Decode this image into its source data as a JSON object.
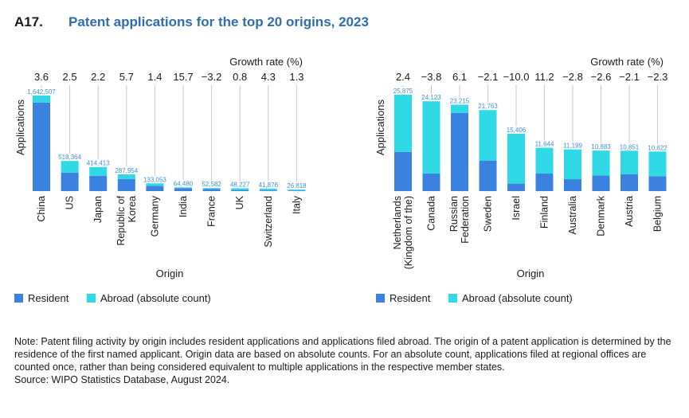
{
  "figure_id": "A17.",
  "title": "Patent applications for the top 20 origins, 2023",
  "colors": {
    "resident": "#3b82e0",
    "abroad": "#2fd9e5",
    "title": "#2f6db0",
    "totals": "#3f8fd8"
  },
  "note": "Note: Patent filing activity by origin includes resident applications and applications filed abroad. The origin of a patent application is determined by the residence of the first named applicant. Origin data are based on absolute counts. For an absolute count, applications filed at regional offices are counted once, rather than being considered equivalent to multiple applications in the respective member states.",
  "source": "Source: WIPO Statistics Database, August 2024.",
  "chart_data": [
    {
      "type": "bar",
      "stacked": true,
      "growth_title": "Growth rate (%)",
      "ylabel": "Applications",
      "xlabel": "Origin",
      "ylim": [
        0,
        1642507
      ],
      "legend": [
        "Resident",
        "Abroad (absolute count)"
      ],
      "categories": [
        [
          "China"
        ],
        [
          "US"
        ],
        [
          "Japan"
        ],
        [
          "Republic of",
          "Korea"
        ],
        [
          "Germany"
        ],
        [
          "India"
        ],
        [
          "France"
        ],
        [
          "UK"
        ],
        [
          "Switzerland"
        ],
        [
          "Italy"
        ]
      ],
      "growth": [
        "3.6",
        "2.5",
        "2.2",
        "5.7",
        "1.4",
        "15.7",
        "−3.2",
        "0.8",
        "4.3",
        "1.3"
      ],
      "total_labels": [
        "1,642,507",
        "518,364",
        "414,413",
        "287,954",
        "133,053",
        "64,480",
        "52,582",
        "48,227",
        "41,876",
        "26,818"
      ],
      "totals": [
        1642507,
        518364,
        414413,
        287954,
        133053,
        64480,
        52582,
        48227,
        41876,
        26818
      ],
      "series": [
        {
          "name": "Resident",
          "values": [
            1520000,
            318000,
            262000,
            208000,
            88000,
            50000,
            37000,
            19000,
            12000,
            10000
          ]
        },
        {
          "name": "Abroad (absolute count)",
          "values": [
            122507,
            200364,
            152413,
            79954,
            45053,
            14480,
            15582,
            29227,
            29876,
            16818
          ]
        }
      ]
    },
    {
      "type": "bar",
      "stacked": true,
      "growth_title": "Growth rate (%)",
      "ylabel": "Applications",
      "xlabel": "Origin",
      "ylim": [
        0,
        25875
      ],
      "legend": [
        "Resident",
        "Abroad (absolute count)"
      ],
      "categories": [
        [
          "Netherlands",
          "(Kingdom of the)"
        ],
        [
          "Canada"
        ],
        [
          "Russian",
          "Federation"
        ],
        [
          "Sweden"
        ],
        [
          "Israel"
        ],
        [
          "Finland"
        ],
        [
          "Australia"
        ],
        [
          "Denmark"
        ],
        [
          "Austria"
        ],
        [
          "Belgium"
        ]
      ],
      "growth": [
        "2.4",
        "−3.8",
        "6.1",
        "−2.1",
        "−10.0",
        "11.2",
        "−2.8",
        "−2.6",
        "−2.1",
        "−2.3"
      ],
      "total_labels": [
        "25,875",
        "24,123",
        "23,215",
        "21,763",
        "15,406",
        "11,644",
        "11,199",
        "10,883",
        "10,851",
        "10,622"
      ],
      "totals": [
        25875,
        24123,
        23215,
        21763,
        15406,
        11644,
        11199,
        10883,
        10851,
        10622
      ],
      "series": [
        {
          "name": "Resident",
          "values": [
            10500,
            4700,
            21000,
            8200,
            2000,
            4700,
            3200,
            4200,
            4500,
            4000
          ]
        },
        {
          "name": "Abroad (absolute count)",
          "values": [
            15375,
            19423,
            2215,
            13563,
            13406,
            6944,
            7999,
            6683,
            6351,
            6622
          ]
        }
      ]
    }
  ]
}
